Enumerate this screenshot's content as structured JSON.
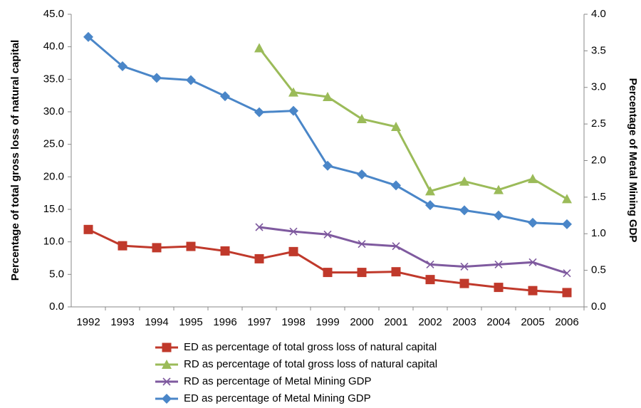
{
  "chart_data": {
    "type": "line",
    "categories": [
      "1992",
      "1993",
      "1994",
      "1995",
      "1996",
      "1997",
      "1998",
      "1999",
      "2000",
      "2001",
      "2002",
      "2003",
      "2004",
      "2005",
      "2006"
    ],
    "y_label": "Percentage of total gross loss of natural capital",
    "y2_label": "Percentage of Metal Mining GDP",
    "ylim": [
      0,
      45
    ],
    "yticks": [
      {
        "value": 0,
        "label": "0.0"
      },
      {
        "value": 5,
        "label": "5.0"
      },
      {
        "value": 10,
        "label": "10.0"
      },
      {
        "value": 15,
        "label": "15.0"
      },
      {
        "value": 20,
        "label": "20.0"
      },
      {
        "value": 25,
        "label": "25.0"
      },
      {
        "value": 30,
        "label": "30.0"
      },
      {
        "value": 35,
        "label": "35.0"
      },
      {
        "value": 40,
        "label": "40.0"
      },
      {
        "value": 45,
        "label": "45.0"
      }
    ],
    "y2lim": [
      0,
      4
    ],
    "y2ticks": [
      {
        "value": 0,
        "label": "0.0"
      },
      {
        "value": 0.5,
        "label": "0.5"
      },
      {
        "value": 1,
        "label": "1.0"
      },
      {
        "value": 1.5,
        "label": "1.5"
      },
      {
        "value": 2,
        "label": "2.0"
      },
      {
        "value": 2.5,
        "label": "2.5"
      },
      {
        "value": 3,
        "label": "3.0"
      },
      {
        "value": 3.5,
        "label": "3.5"
      },
      {
        "value": 4,
        "label": "4.0"
      }
    ],
    "grid": false,
    "legend": "bottom",
    "series": [
      {
        "name": "ED as percentage of total gross loss of natural capital",
        "color": "#c0392b",
        "marker": "square",
        "axis": "y",
        "values": [
          11.9,
          9.4,
          9.1,
          9.3,
          8.6,
          7.4,
          8.5,
          5.3,
          5.3,
          5.4,
          4.2,
          3.6,
          3.0,
          2.5,
          2.2
        ]
      },
      {
        "name": "RD as percentage of total gross loss of natural capital",
        "color": "#9bbb59",
        "marker": "triangle",
        "axis": "y",
        "values": [
          null,
          null,
          null,
          null,
          null,
          39.8,
          33.0,
          32.3,
          28.9,
          27.7,
          17.8,
          19.3,
          18.0,
          19.7,
          16.6
        ]
      },
      {
        "name": "RD as percentage of Metal Mining GDP",
        "color": "#7f5a9f",
        "marker": "x",
        "axis": "y2",
        "values": [
          null,
          null,
          null,
          null,
          null,
          1.09,
          1.03,
          0.99,
          0.86,
          0.83,
          0.58,
          0.55,
          0.58,
          0.61,
          0.46
        ]
      },
      {
        "name": "ED as percentage of Metal Mining GDP",
        "color": "#4a86c8",
        "marker": "diamond",
        "axis": "y2",
        "values": [
          3.69,
          3.29,
          3.13,
          3.1,
          2.88,
          2.66,
          2.68,
          1.93,
          1.81,
          1.66,
          1.39,
          1.32,
          1.25,
          1.15,
          1.13
        ]
      }
    ]
  }
}
